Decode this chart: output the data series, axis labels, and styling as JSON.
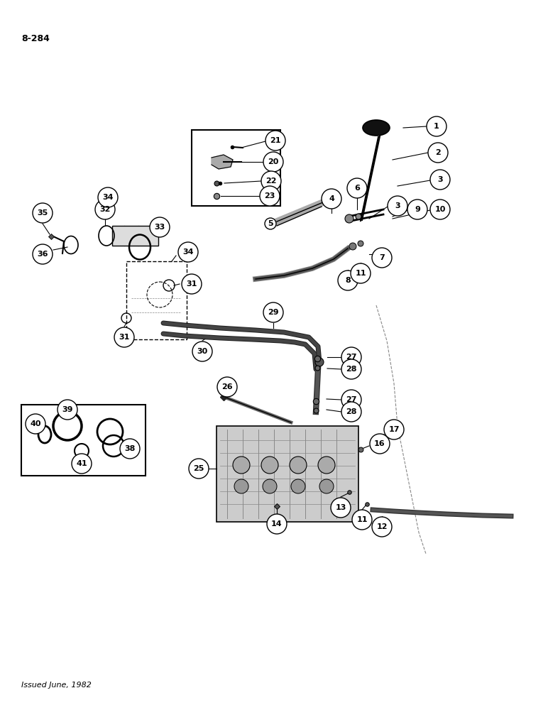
{
  "page_number": "8-284",
  "footer_text": "Issued June, 1982",
  "bg": "#ffffff",
  "lc": "#000000",
  "fw": 7.72,
  "fh": 10.0,
  "dpi": 100
}
